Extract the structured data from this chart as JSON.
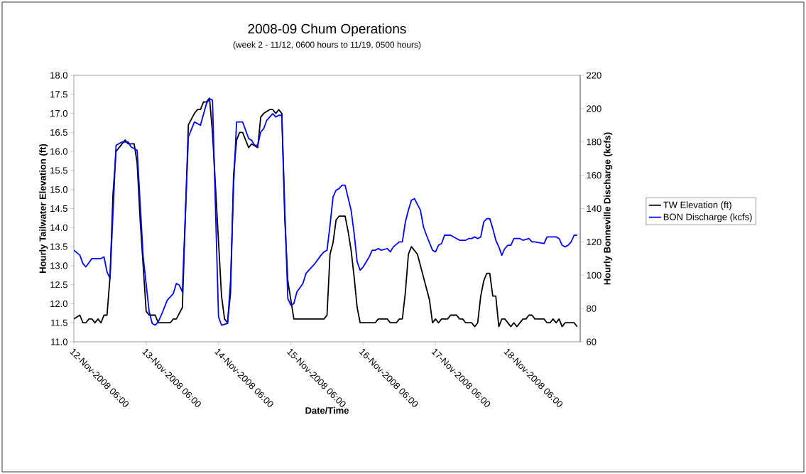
{
  "chart_data": {
    "type": "line",
    "title": "2008-09 Chum Operations",
    "subtitle": "(week 2 - 11/12, 0600 hours to 11/19, 0500 hours)",
    "xlabel": "Date/Time",
    "ylabel": "Hourly Tailwater Elevation (ft)",
    "y2label": "Hourly Bonneville Discharge (kcfs)",
    "xlim": [
      "2008-11-12T06:00",
      "2008-11-19T06:00"
    ],
    "xticks": [
      {
        "value": "2008-11-12T06:00",
        "label": "12-Nov-2008 06:00"
      },
      {
        "value": "2008-11-13T06:00",
        "label": "13-Nov-2008 06:00"
      },
      {
        "value": "2008-11-14T06:00",
        "label": "14-Nov-2008 06:00"
      },
      {
        "value": "2008-11-15T06:00",
        "label": "15-Nov-2008 06:00"
      },
      {
        "value": "2008-11-16T06:00",
        "label": "16-Nov-2008 06:00"
      },
      {
        "value": "2008-11-17T06:00",
        "label": "17-Nov-2008 06:00"
      },
      {
        "value": "2008-11-18T06:00",
        "label": "18-Nov-2008 06:00"
      }
    ],
    "ylim": [
      11,
      18
    ],
    "yticks": [
      {
        "value": 11,
        "label": "11.0"
      },
      {
        "value": 11.5,
        "label": "11.5"
      },
      {
        "value": 12,
        "label": "12.0"
      },
      {
        "value": 12.5,
        "label": "12.5"
      },
      {
        "value": 13,
        "label": "13.0"
      },
      {
        "value": 13.5,
        "label": "13.5"
      },
      {
        "value": 14,
        "label": "14.0"
      },
      {
        "value": 14.5,
        "label": "14.5"
      },
      {
        "value": 15,
        "label": "15.0"
      },
      {
        "value": 15.5,
        "label": "15.5"
      },
      {
        "value": 16,
        "label": "16.0"
      },
      {
        "value": 16.5,
        "label": "16.5"
      },
      {
        "value": 17,
        "label": "17.0"
      },
      {
        "value": 17.5,
        "label": "17.5"
      },
      {
        "value": 18,
        "label": "18.0"
      }
    ],
    "y2lim": [
      60,
      220
    ],
    "y2ticks": [
      60,
      80,
      100,
      120,
      140,
      160,
      180,
      200,
      220
    ],
    "legend": "right",
    "line_style": "solid",
    "series": [
      {
        "name": "TW Elevation (ft)",
        "color": "#000000",
        "axis": "y",
        "x": [
          "2008-11-12T06:00",
          "2008-11-12T08:00",
          "2008-11-12T09:00",
          "2008-11-12T10:00",
          "2008-11-12T11:00",
          "2008-11-12T12:00",
          "2008-11-12T13:00",
          "2008-11-12T14:00",
          "2008-11-12T15:00",
          "2008-11-12T16:00",
          "2008-11-12T17:00",
          "2008-11-12T18:00",
          "2008-11-12T19:00",
          "2008-11-12T20:00",
          "2008-11-12T22:00",
          "2008-11-12T23:00",
          "2008-11-13T00:00",
          "2008-11-13T02:00",
          "2008-11-13T03:00",
          "2008-11-13T04:00",
          "2008-11-13T05:00",
          "2008-11-13T06:00",
          "2008-11-13T07:00",
          "2008-11-13T09:00",
          "2008-11-13T10:00",
          "2008-11-13T14:00",
          "2008-11-13T15:00",
          "2008-11-13T16:00",
          "2008-11-13T18:00",
          "2008-11-13T20:00",
          "2008-11-13T22:00",
          "2008-11-13T23:00",
          "2008-11-14T00:00",
          "2008-11-14T01:00",
          "2008-11-14T02:00",
          "2008-11-14T03:00",
          "2008-11-14T04:00",
          "2008-11-14T07:00",
          "2008-11-14T08:00",
          "2008-11-14T09:00",
          "2008-11-14T10:00",
          "2008-11-14T11:00",
          "2008-11-14T12:00",
          "2008-11-14T13:00",
          "2008-11-14T14:00",
          "2008-11-14T16:00",
          "2008-11-14T17:00",
          "2008-11-14T19:00",
          "2008-11-14T20:00",
          "2008-11-14T21:00",
          "2008-11-14T23:00",
          "2008-11-15T00:00",
          "2008-11-15T01:00",
          "2008-11-15T02:00",
          "2008-11-15T03:00",
          "2008-11-15T04:00",
          "2008-11-15T05:00",
          "2008-11-15T07:00",
          "2008-11-15T17:00",
          "2008-11-15T18:00",
          "2008-11-15T19:00",
          "2008-11-15T20:00",
          "2008-11-15T21:00",
          "2008-11-15T22:00",
          "2008-11-16T00:00",
          "2008-11-16T01:00",
          "2008-11-16T02:00",
          "2008-11-16T03:00",
          "2008-11-16T04:00",
          "2008-11-16T05:00",
          "2008-11-16T10:00",
          "2008-11-16T11:00",
          "2008-11-16T14:00",
          "2008-11-16T15:00",
          "2008-11-16T17:00",
          "2008-11-16T18:00",
          "2008-11-16T19:00",
          "2008-11-16T20:00",
          "2008-11-16T21:00",
          "2008-11-16T22:00",
          "2008-11-17T00:00",
          "2008-11-17T02:00",
          "2008-11-17T03:00",
          "2008-11-17T04:00",
          "2008-11-17T05:00",
          "2008-11-17T06:00",
          "2008-11-17T07:00",
          "2008-11-17T08:00",
          "2008-11-17T10:00",
          "2008-11-17T11:00",
          "2008-11-17T13:00",
          "2008-11-17T14:00",
          "2008-11-17T15:00",
          "2008-11-17T16:00",
          "2008-11-17T18:00",
          "2008-11-17T19:00",
          "2008-11-17T20:00",
          "2008-11-17T21:00",
          "2008-11-17T22:00",
          "2008-11-17T23:00",
          "2008-11-18T00:00",
          "2008-11-18T01:00",
          "2008-11-18T02:00",
          "2008-11-18T03:00",
          "2008-11-18T04:00",
          "2008-11-18T05:00",
          "2008-11-18T07:00",
          "2008-11-18T08:00",
          "2008-11-18T09:00",
          "2008-11-18T11:00",
          "2008-11-18T12:00",
          "2008-11-18T13:00",
          "2008-11-18T14:00",
          "2008-11-18T15:00",
          "2008-11-18T18:00",
          "2008-11-18T19:00",
          "2008-11-18T20:00",
          "2008-11-18T21:00",
          "2008-11-18T22:00",
          "2008-11-18T23:00",
          "2008-11-19T00:00",
          "2008-11-19T01:00",
          "2008-11-19T04:00",
          "2008-11-19T05:00"
        ],
        "values": [
          11.6,
          11.7,
          11.5,
          11.5,
          11.6,
          11.6,
          11.5,
          11.6,
          11.5,
          11.7,
          11.7,
          12.7,
          14.9,
          16.0,
          16.2,
          16.3,
          16.2,
          16.2,
          15.7,
          14.2,
          null,
          11.8,
          11.7,
          11.7,
          11.5,
          11.5,
          11.6,
          11.6,
          11.9,
          16.7,
          17.0,
          17.1,
          17.1,
          17.3,
          17.3,
          17.4,
          16.5,
          12.2,
          11.6,
          11.5,
          12.3,
          15.4,
          16.3,
          16.5,
          16.5,
          16.1,
          16.2,
          16.1,
          16.9,
          17.0,
          17.1,
          17.1,
          17.0,
          17.1,
          17.0,
          14.2,
          12.6,
          11.6,
          11.6,
          11.7,
          13.3,
          13.6,
          14.2,
          14.3,
          14.3,
          13.9,
          13.4,
          12.7,
          11.9,
          11.5,
          11.5,
          11.6,
          11.6,
          11.5,
          11.5,
          11.6,
          11.6,
          12.3,
          13.3,
          13.5,
          13.3,
          12.7,
          12.4,
          12.1,
          11.5,
          11.6,
          11.5,
          11.6,
          11.6,
          11.7,
          11.7,
          11.6,
          11.6,
          11.5,
          11.5,
          11.4,
          11.5,
          12.2,
          12.6,
          12.8,
          12.8,
          12.2,
          12.2,
          11.4,
          11.6,
          11.6,
          11.4,
          11.5,
          11.4,
          11.6,
          11.6,
          11.7,
          11.7,
          11.6,
          11.6,
          11.5,
          11.5,
          11.6,
          11.5,
          11.6,
          11.4,
          11.5,
          11.5,
          11.4
        ]
      },
      {
        "name": "BON Discharge (kcfs)",
        "color": "#0000ff",
        "axis": "y2",
        "x": [
          "2008-11-12T06:00",
          "2008-11-12T08:00",
          "2008-11-12T09:00",
          "2008-11-12T10:00",
          "2008-11-12T12:00",
          "2008-11-12T15:00",
          "2008-11-12T16:00",
          "2008-11-12T17:00",
          "2008-11-12T18:00",
          "2008-11-12T20:00",
          "2008-11-12T22:00",
          "2008-11-13T00:00",
          "2008-11-13T01:00",
          "2008-11-13T03:00",
          "2008-11-13T05:00",
          "2008-11-13T07:00",
          "2008-11-13T08:00",
          "2008-11-13T09:00",
          "2008-11-13T10:00",
          "2008-11-13T11:00",
          "2008-11-13T13:00",
          "2008-11-13T15:00",
          "2008-11-13T16:00",
          "2008-11-13T17:00",
          "2008-11-13T18:00",
          "2008-11-13T20:00",
          "2008-11-13T22:00",
          "2008-11-14T00:00",
          "2008-11-14T02:00",
          "2008-11-14T03:00",
          "2008-11-14T04:00",
          "2008-11-14T06:00",
          "2008-11-14T07:00",
          "2008-11-14T09:00",
          "2008-11-14T10:00",
          "2008-11-14T11:00",
          "2008-11-14T12:00",
          "2008-11-14T14:00",
          "2008-11-14T16:00",
          "2008-11-14T17:00",
          "2008-11-14T18:00",
          "2008-11-14T19:00",
          "2008-11-14T20:00",
          "2008-11-14T21:00",
          "2008-11-14T22:00",
          "2008-11-15T00:00",
          "2008-11-15T01:00",
          "2008-11-15T02:00",
          "2008-11-15T03:00",
          "2008-11-15T04:00",
          "2008-11-15T05:00",
          "2008-11-15T06:00",
          "2008-11-15T07:00",
          "2008-11-15T08:00",
          "2008-11-15T10:00",
          "2008-11-15T11:00",
          "2008-11-15T12:00",
          "2008-11-15T14:00",
          "2008-11-15T16:00",
          "2008-11-15T17:00",
          "2008-11-15T18:00",
          "2008-11-15T19:00",
          "2008-11-15T20:00",
          "2008-11-15T21:00",
          "2008-11-15T22:00",
          "2008-11-15T23:00",
          "2008-11-16T00:00",
          "2008-11-16T02:00",
          "2008-11-16T03:00",
          "2008-11-16T04:00",
          "2008-11-16T05:00",
          "2008-11-16T06:00",
          "2008-11-16T08:00",
          "2008-11-16T09:00",
          "2008-11-16T10:00",
          "2008-11-16T11:00",
          "2008-11-16T12:00",
          "2008-11-16T14:00",
          "2008-11-16T15:00",
          "2008-11-16T16:00",
          "2008-11-16T18:00",
          "2008-11-16T19:00",
          "2008-11-16T20:00",
          "2008-11-16T21:00",
          "2008-11-16T22:00",
          "2008-11-16T23:00",
          "2008-11-17T01:00",
          "2008-11-17T02:00",
          "2008-11-17T03:00",
          "2008-11-17T05:00",
          "2008-11-17T06:00",
          "2008-11-17T07:00",
          "2008-11-17T08:00",
          "2008-11-17T09:00",
          "2008-11-17T10:00",
          "2008-11-17T11:00",
          "2008-11-17T13:00",
          "2008-11-17T14:00",
          "2008-11-17T16:00",
          "2008-11-17T17:00",
          "2008-11-17T18:00",
          "2008-11-17T19:00",
          "2008-11-17T20:00",
          "2008-11-17T21:00",
          "2008-11-17T22:00",
          "2008-11-17T23:00",
          "2008-11-18T00:00",
          "2008-11-18T01:00",
          "2008-11-18T02:00",
          "2008-11-18T03:00",
          "2008-11-18T04:00",
          "2008-11-18T05:00",
          "2008-11-18T06:00",
          "2008-11-18T07:00",
          "2008-11-18T08:00",
          "2008-11-18T10:00",
          "2008-11-18T11:00",
          "2008-11-18T13:00",
          "2008-11-18T14:00",
          "2008-11-18T15:00",
          "2008-11-18T18:00",
          "2008-11-18T19:00",
          "2008-11-18T22:00",
          "2008-11-18T23:00",
          "2008-11-19T00:00",
          "2008-11-19T01:00",
          "2008-11-19T02:00",
          "2008-11-19T03:00",
          "2008-11-19T04:00",
          "2008-11-19T05:00"
        ],
        "values": [
          115,
          112,
          107,
          105,
          110,
          110,
          111,
          102,
          98,
          178,
          180,
          180,
          177,
          175,
          111,
          78,
          71,
          70,
          72,
          76,
          85,
          89,
          95,
          94,
          90,
          183,
          192,
          190,
          203,
          206,
          205,
          75,
          70,
          71,
          97,
          154,
          192,
          192,
          182,
          181,
          178,
          178,
          186,
          188,
          193,
          197,
          195,
          196,
          196,
          139,
          86,
          82,
          83,
          90,
          95,
          101,
          103,
          107,
          112,
          114,
          115,
          130,
          147,
          151,
          152,
          154,
          154,
          139,
          125,
          108,
          103,
          105,
          111,
          115,
          115,
          116,
          115,
          116,
          114,
          117,
          120,
          120,
          132,
          139,
          145,
          146,
          139,
          129,
          124,
          115,
          114,
          118,
          119,
          124,
          124,
          124,
          122,
          121,
          121,
          122,
          122,
          123,
          122,
          123,
          132,
          134,
          134,
          128,
          121,
          117,
          112,
          116,
          118,
          118,
          122,
          122,
          121,
          122,
          120,
          120,
          119,
          123,
          123,
          122,
          118,
          117,
          118,
          120,
          124,
          124
        ]
      }
    ]
  }
}
